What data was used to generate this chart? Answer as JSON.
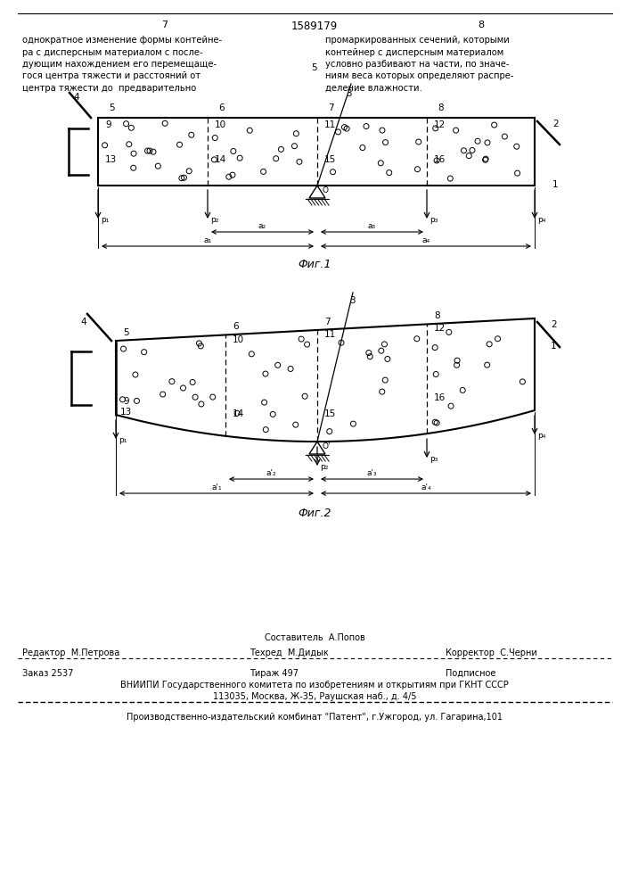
{
  "bg_color": "#ffffff",
  "page_color": "#ffffff",
  "header_left_num": "7",
  "header_center_num": "1589179",
  "header_right_num": "8",
  "text_left": "однократное изменение формы контейне-\nра с дисперсным материалом с после-\nдующим нахождением его перемещаще-\nгося центра тяжести и расстояний от\nцентра тяжести до  предварительно",
  "text_right": "промаркированных сечений, которыми\nконтейнер с дисперсным материалом\nусловно разбивают на части, по значе-\nниям веса которых определяют распре-\nделение влажности.",
  "text_center_num": "5",
  "fig1_caption": "Фиг.1",
  "fig2_caption": "Фиг.2",
  "footer_composer": "Составитель  А.Попов",
  "footer_editor": "Редактор  М.Петрова",
  "footer_tech": "Техред  М.Дидык",
  "footer_corrector": "Корректор  С.Черни",
  "footer_order": "Заказ 2537",
  "footer_circulation": "Тираж 497",
  "footer_subscription": "Подписное",
  "footer_vniip": "ВНИИПИ Государственного комитета по изобретениям и открытиям при ГКНТ СССР",
  "footer_address": "113035, Москва, Ж-35, Раушская наб., д. 4/5",
  "footer_production": "Производственно-издательский комбинат \"Патент\", г.Ужгород, ул. Гагарина,101"
}
